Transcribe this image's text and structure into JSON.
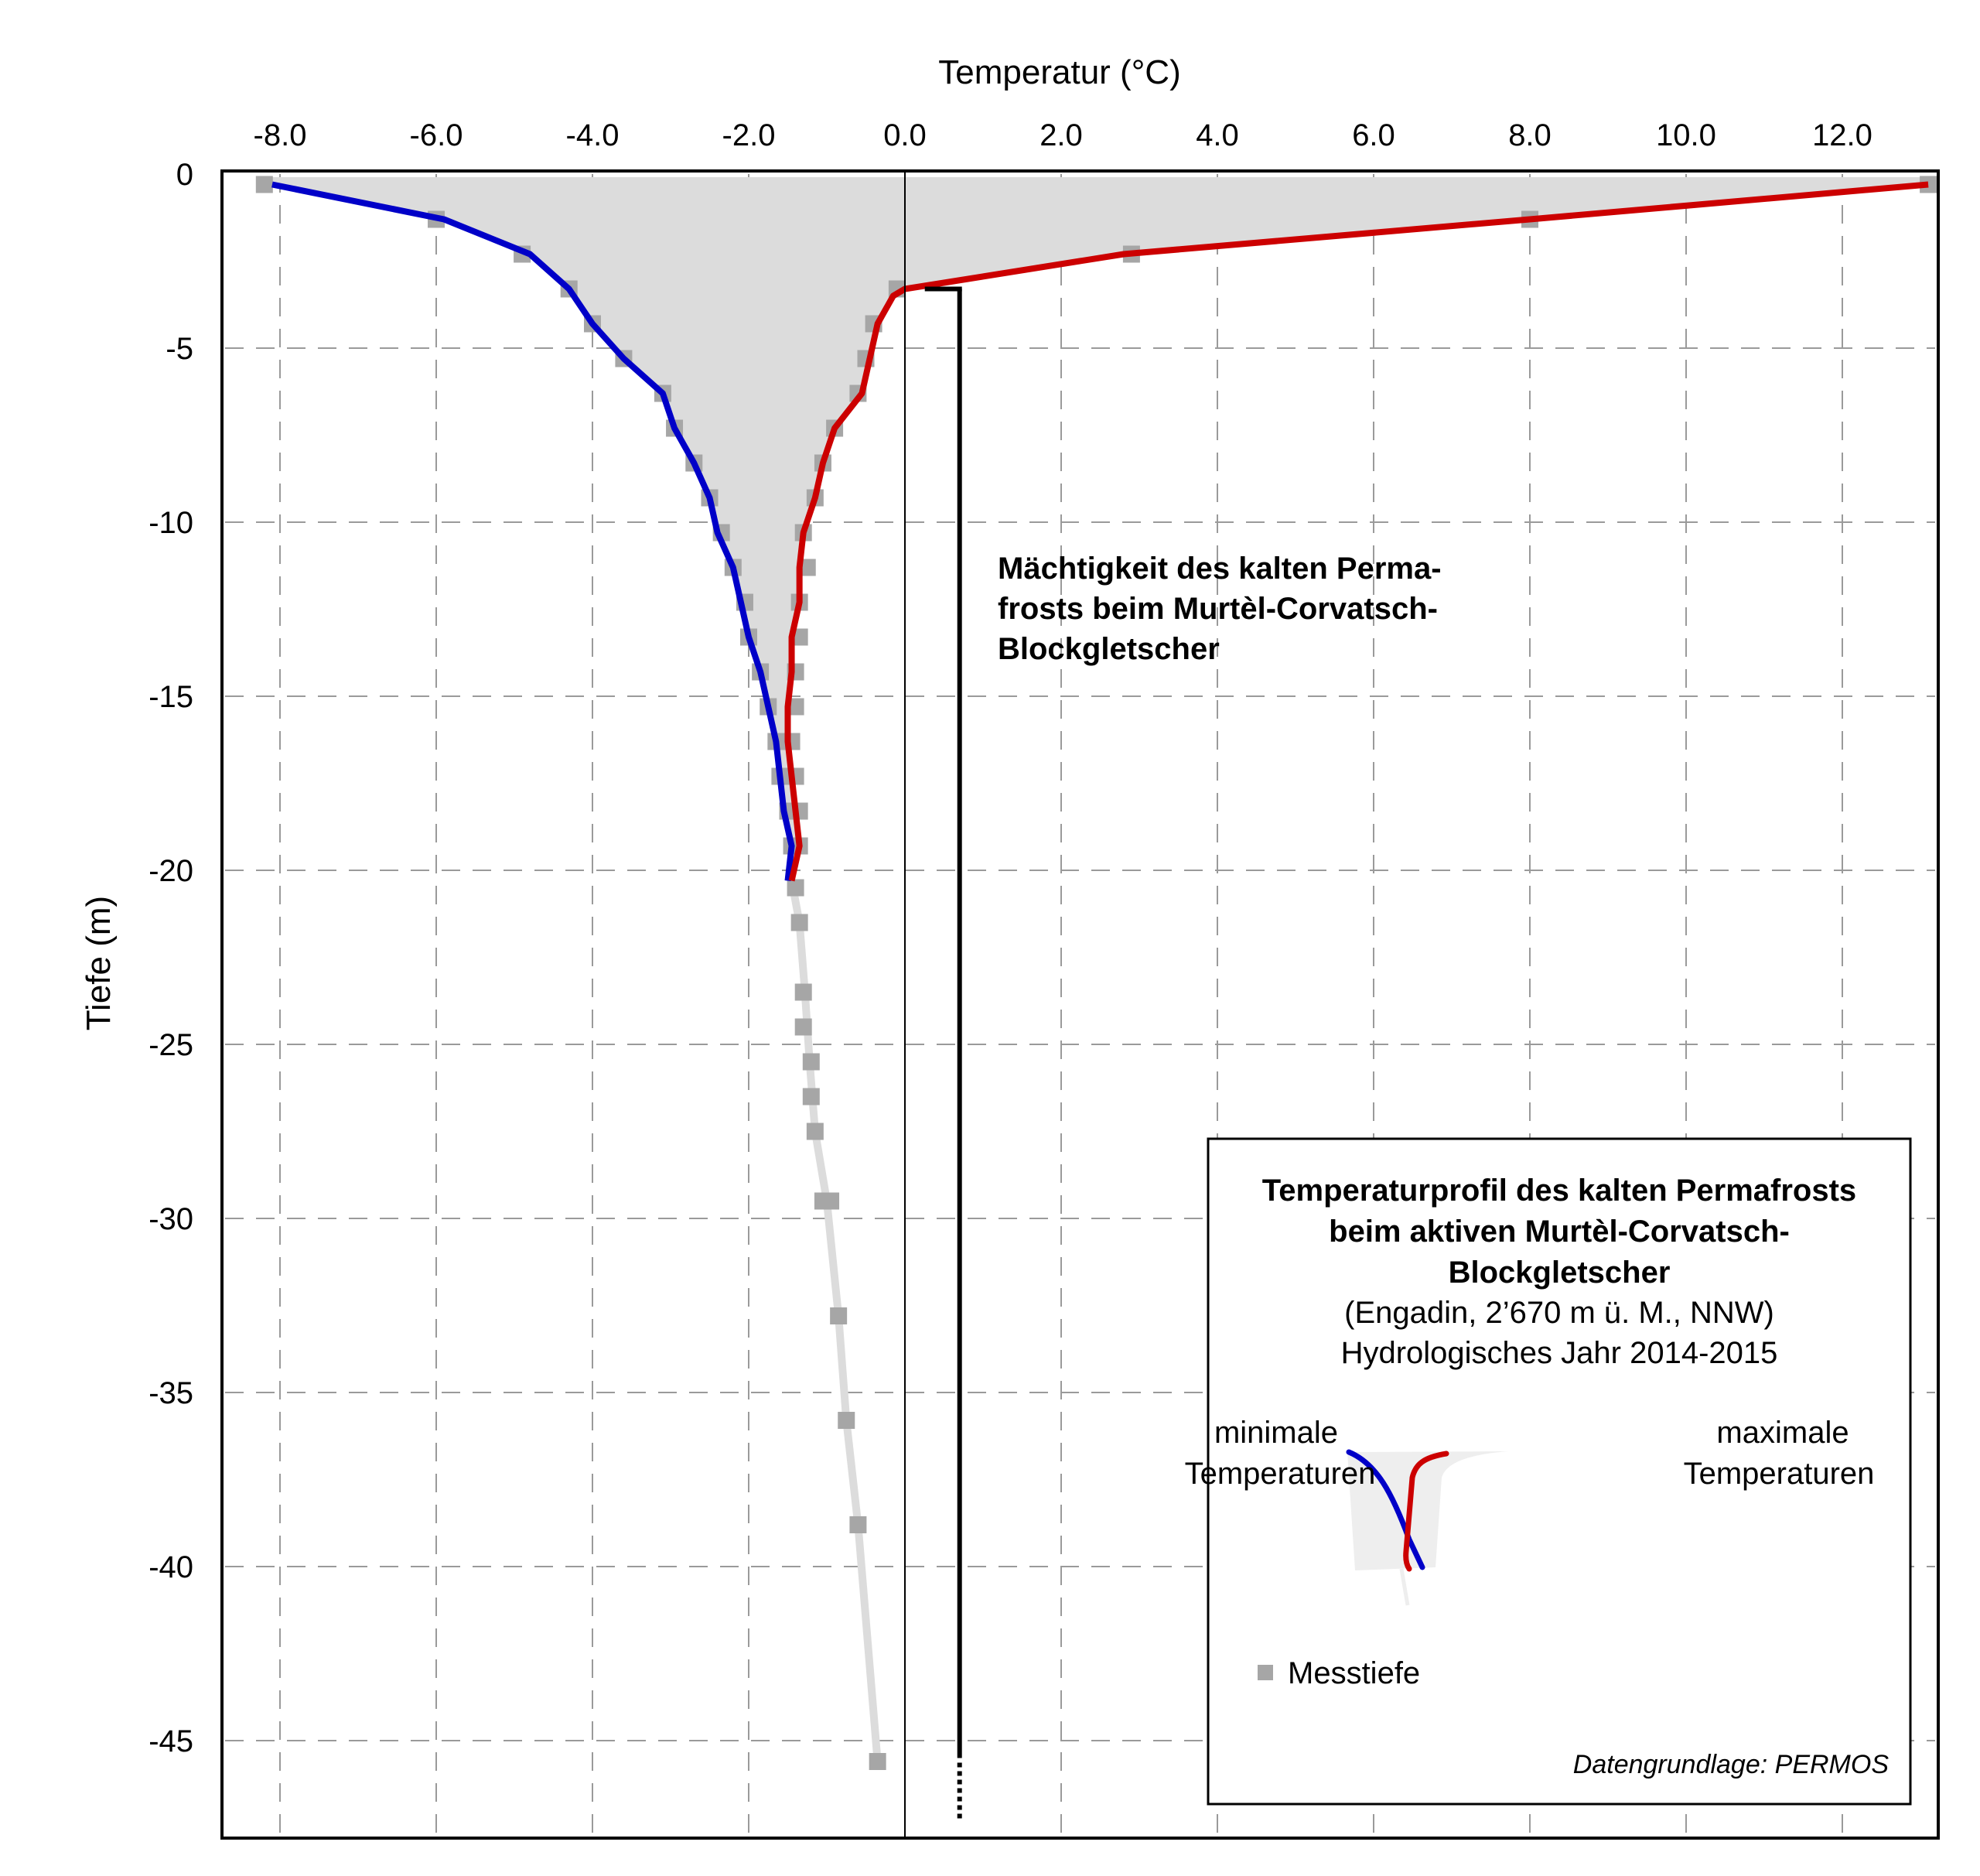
{
  "chart_data": {
    "type": "line",
    "title": "Temperaturprofil des kalten Permafrosts beim aktiven Murtèl-Corvatsch-Blockgletscher",
    "xlabel": "Temperatur (°C)",
    "ylabel": "Tiefe (m)",
    "xlim": [
      -8.6,
      13.3
    ],
    "ylim": [
      -47.5,
      0
    ],
    "x_ticks": [
      "-8.0",
      "-6.0",
      "-4.0",
      "-2.0",
      "0.0",
      "2.0",
      "4.0",
      "6.0",
      "8.0",
      "10.0",
      "12.0"
    ],
    "x_tick_values": [
      -8,
      -6,
      -4,
      -2,
      0,
      2,
      4,
      6,
      8,
      10,
      12
    ],
    "y_ticks": [
      "0",
      "-5",
      "-10",
      "-15",
      "-20",
      "-25",
      "-30",
      "-35",
      "-40",
      "-45"
    ],
    "y_tick_values": [
      0,
      -5,
      -10,
      -15,
      -20,
      -25,
      -30,
      -35,
      -40,
      -45
    ],
    "grid": true,
    "series": [
      {
        "name": "minimale Temperaturen",
        "color": "#0000c8",
        "depth": [
          -0.3,
          -1.3,
          -2.3,
          -3.3,
          -4.3,
          -5.3,
          -6.3,
          -7.3,
          -8.3,
          -9.3,
          -10.3,
          -11.3,
          -12.3,
          -13.3,
          -14.3,
          -15.3,
          -16.3,
          -17.3,
          -18.3,
          -19.3,
          -20.3
        ],
        "temp": [
          -8.1,
          -5.9,
          -4.8,
          -4.3,
          -4.0,
          -3.6,
          -3.1,
          -2.95,
          -2.7,
          -2.5,
          -2.4,
          -2.2,
          -2.1,
          -2.0,
          -1.85,
          -1.75,
          -1.65,
          -1.6,
          -1.55,
          -1.45,
          -1.5
        ]
      },
      {
        "name": "maximale Temperaturen",
        "color": "#cc0000",
        "depth": [
          -0.3,
          -1.3,
          -2.3,
          -3.3,
          -3.5,
          -4.3,
          -5.3,
          -6.3,
          -7.3,
          -8.3,
          -9.3,
          -10.3,
          -11.3,
          -12.3,
          -13.3,
          -14.3,
          -15.3,
          -16.3,
          -17.3,
          -18.3,
          -19.3,
          -20.3
        ],
        "temp": [
          13.1,
          8.0,
          2.8,
          0.0,
          -0.15,
          -0.35,
          -0.45,
          -0.55,
          -0.9,
          -1.05,
          -1.15,
          -1.3,
          -1.35,
          -1.35,
          -1.45,
          -1.45,
          -1.5,
          -1.5,
          -1.45,
          -1.4,
          -1.35,
          -1.45
        ]
      },
      {
        "name": "Messtiefe",
        "type": "scatter",
        "color": "#a6a6a6",
        "points_min_side": [
          [
            -8.2,
            -0.3
          ],
          [
            -6.0,
            -1.3
          ],
          [
            -4.9,
            -2.3
          ],
          [
            -4.3,
            -3.3
          ],
          [
            -4.0,
            -4.3
          ],
          [
            -3.6,
            -5.3
          ],
          [
            -3.1,
            -6.3
          ],
          [
            -2.95,
            -7.3
          ],
          [
            -2.7,
            -8.3
          ],
          [
            -2.5,
            -9.3
          ],
          [
            -2.35,
            -10.3
          ],
          [
            -2.2,
            -11.3
          ],
          [
            -2.05,
            -12.3
          ],
          [
            -2.0,
            -13.3
          ],
          [
            -1.85,
            -14.3
          ],
          [
            -1.75,
            -15.3
          ],
          [
            -1.65,
            -16.3
          ],
          [
            -1.6,
            -17.3
          ],
          [
            -1.5,
            -18.3
          ],
          [
            -1.45,
            -19.3
          ]
        ],
        "points_max_side": [
          [
            13.1,
            -0.3
          ],
          [
            8.0,
            -1.3
          ],
          [
            2.9,
            -2.3
          ],
          [
            -0.1,
            -3.3
          ],
          [
            -0.4,
            -4.3
          ],
          [
            -0.5,
            -5.3
          ],
          [
            -0.6,
            -6.3
          ],
          [
            -0.9,
            -7.3
          ],
          [
            -1.05,
            -8.3
          ],
          [
            -1.15,
            -9.3
          ],
          [
            -1.3,
            -10.3
          ],
          [
            -1.25,
            -11.3
          ],
          [
            -1.35,
            -12.3
          ],
          [
            -1.35,
            -13.3
          ],
          [
            -1.4,
            -14.3
          ],
          [
            -1.4,
            -15.3
          ],
          [
            -1.45,
            -16.3
          ],
          [
            -1.4,
            -17.3
          ],
          [
            -1.35,
            -18.3
          ],
          [
            -1.35,
            -19.3
          ]
        ],
        "points_deep": [
          [
            -1.4,
            -20.5
          ],
          [
            -1.35,
            -21.5
          ],
          [
            -1.3,
            -23.5
          ],
          [
            -1.3,
            -24.5
          ],
          [
            -1.2,
            -25.5
          ],
          [
            -1.2,
            -26.5
          ],
          [
            -1.15,
            -27.5
          ],
          [
            -1.05,
            -29.5
          ],
          [
            -0.95,
            -29.5
          ],
          [
            -0.85,
            -32.8
          ],
          [
            -0.75,
            -35.8
          ],
          [
            -0.6,
            -38.8
          ],
          [
            -0.35,
            -45.6
          ]
        ]
      },
      {
        "name": "tiefer Verlauf",
        "color": "#dcdcdc",
        "depth": [
          -20.3,
          -21.5,
          -23.5,
          -25.5,
          -27.5,
          -29.5,
          -32.8,
          -35.8,
          -38.8,
          -45.6
        ],
        "temp": [
          -1.45,
          -1.35,
          -1.28,
          -1.22,
          -1.15,
          -1.0,
          -0.85,
          -0.75,
          -0.6,
          -0.35
        ]
      }
    ],
    "annotations": [
      {
        "text_lines": [
          "Mächtigkeit des kalten Perma-",
          "frosts beim Murtèl-Corvatsch-",
          "Blockgletscher"
        ],
        "bracket_from_depth": -3.3,
        "bracket_to_depth": -45.5,
        "bracket_dotted_to_depth": -47.3,
        "bracket_temp": 0.7
      }
    ],
    "legend": {
      "position": "bottom-right",
      "title_lines": [
        "Temperaturprofil des kalten Permafrosts",
        "beim aktiven Murtèl-Corvatsch-",
        "Blockgletscher"
      ],
      "subtitle_lines": [
        "(Engadin, 2’670 m ü. M., NNW)",
        "Hydrologisches Jahr 2014-2015"
      ],
      "min_label_lines": [
        "minimale",
        "Temperaturen"
      ],
      "max_label_lines": [
        "maximale",
        "Temperaturen"
      ],
      "marker_label": "Messtiefe",
      "source": "Datengrundlage: PERMOS"
    },
    "fill_color": "#dcdcdc"
  }
}
